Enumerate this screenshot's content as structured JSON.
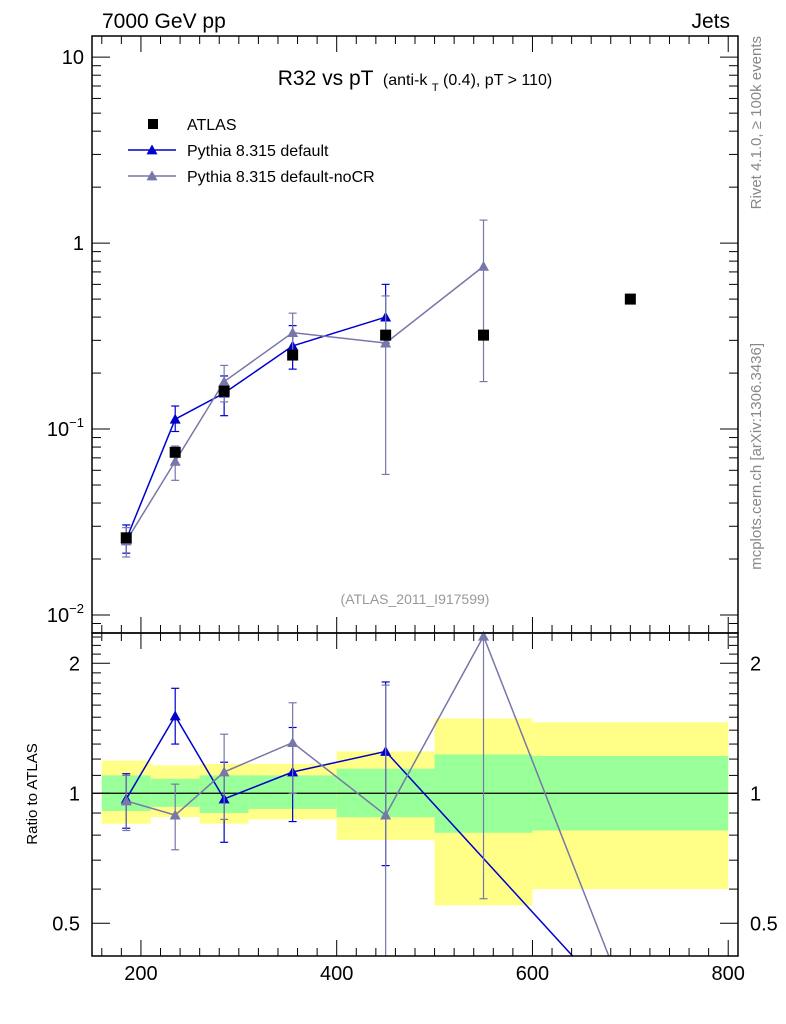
{
  "header": {
    "left": "7000 GeV pp",
    "right": "Jets",
    "title_main": "R32 vs pT",
    "title_paren_open": "(anti-k",
    "title_sub": "T",
    "title_rest": "(0.4), pT > 110)",
    "analysis_id": "(ATLAS_2011_I917599)",
    "side_rivet": "Rivet 4.1.0, ≥ 100k events",
    "side_mcplots": "mcplots.cern.ch [arXiv:1306.3436]",
    "ratio_ylabel": "Ratio to ATLAS"
  },
  "colors": {
    "data": "#000000",
    "pythia_default": "#0000cc",
    "pythia_nocr": "#7777aa",
    "band_outer": "#ffff88",
    "band_inner": "#99ff99"
  },
  "chart_data": {
    "type": "scatter",
    "xlim": [
      150,
      810
    ],
    "ylim_main": [
      0.008,
      13
    ],
    "ylim_ratio": [
      0.42,
      2.35
    ],
    "x_ticks": [
      "200",
      "400",
      "600",
      "800"
    ],
    "y_ticks_main": [
      {
        "value": 10,
        "label": "10",
        "exp": ""
      },
      {
        "value": 1,
        "label": "1",
        "exp": ""
      },
      {
        "value": 0.1,
        "label": "10",
        "exp": "−1"
      },
      {
        "value": 0.01,
        "label": "10",
        "exp": "−2"
      }
    ],
    "y_ticks_ratio": [
      "0.5",
      "1",
      "2"
    ],
    "legend": [
      "ATLAS",
      "Pythia 8.315 default",
      "Pythia 8.315 default-noCR"
    ],
    "atlas": {
      "name": "ATLAS",
      "points": [
        {
          "x": 185,
          "y": 0.026
        },
        {
          "x": 235,
          "y": 0.075
        },
        {
          "x": 285,
          "y": 0.16
        },
        {
          "x": 355,
          "y": 0.25
        },
        {
          "x": 450,
          "y": 0.32
        },
        {
          "x": 550,
          "y": 0.32
        },
        {
          "x": 700,
          "y": 0.5
        }
      ]
    },
    "series": [
      {
        "name": "Pythia 8.315 default",
        "points": [
          {
            "x": 185,
            "y": 0.0255,
            "lo": 0.0215,
            "hi": 0.0305
          },
          {
            "x": 235,
            "y": 0.113,
            "lo": 0.097,
            "hi": 0.133
          },
          {
            "x": 285,
            "y": 0.156,
            "lo": 0.118,
            "hi": 0.193
          },
          {
            "x": 355,
            "y": 0.28,
            "lo": 0.21,
            "hi": 0.36
          },
          {
            "x": 450,
            "y": 0.4,
            "lo": 0.29,
            "hi": 0.6
          }
        ]
      },
      {
        "name": "Pythia 8.315 default-noCR",
        "points": [
          {
            "x": 185,
            "y": 0.025,
            "lo": 0.0205,
            "hi": 0.0295
          },
          {
            "x": 235,
            "y": 0.067,
            "lo": 0.053,
            "hi": 0.081
          },
          {
            "x": 285,
            "y": 0.18,
            "lo": 0.14,
            "hi": 0.22
          },
          {
            "x": 355,
            "y": 0.33,
            "lo": 0.25,
            "hi": 0.42
          },
          {
            "x": 450,
            "y": 0.29,
            "lo": 0.057,
            "hi": 0.52
          },
          {
            "x": 550,
            "y": 0.75,
            "lo": 0.18,
            "hi": 1.33
          }
        ]
      }
    ],
    "ratio": {
      "bands": [
        {
          "x0": 160,
          "x1": 210,
          "in_lo": 0.91,
          "in_hi": 1.1,
          "out_lo": 0.85,
          "out_hi": 1.19
        },
        {
          "x0": 210,
          "x1": 260,
          "in_lo": 0.93,
          "in_hi": 1.08,
          "out_lo": 0.88,
          "out_hi": 1.16
        },
        {
          "x0": 260,
          "x1": 310,
          "in_lo": 0.9,
          "in_hi": 1.1,
          "out_lo": 0.85,
          "out_hi": 1.17
        },
        {
          "x0": 310,
          "x1": 400,
          "in_lo": 0.92,
          "in_hi": 1.1,
          "out_lo": 0.87,
          "out_hi": 1.17
        },
        {
          "x0": 400,
          "x1": 500,
          "in_lo": 0.88,
          "in_hi": 1.14,
          "out_lo": 0.78,
          "out_hi": 1.25
        },
        {
          "x0": 500,
          "x1": 600,
          "in_lo": 0.81,
          "in_hi": 1.23,
          "out_lo": 0.55,
          "out_hi": 1.49
        },
        {
          "x0": 600,
          "x1": 800,
          "in_lo": 0.82,
          "in_hi": 1.22,
          "out_lo": 0.6,
          "out_hi": 1.46
        }
      ],
      "series": [
        {
          "name": "Pythia 8.315 default",
          "points": [
            {
              "x": 185,
              "y": 0.97,
              "lo": 0.83,
              "hi": 1.11
            },
            {
              "x": 235,
              "y": 1.51,
              "lo": 1.3,
              "hi": 1.75
            },
            {
              "x": 285,
              "y": 0.97,
              "lo": 0.77,
              "hi": 1.18
            },
            {
              "x": 355,
              "y": 1.12,
              "lo": 0.86,
              "hi": 1.42
            },
            {
              "x": 450,
              "y": 1.25,
              "lo": 0.68,
              "hi": 1.81
            },
            {
              "x": 641,
              "y": 0.4
            }
          ]
        },
        {
          "name": "Pythia 8.315 default-noCR",
          "points": [
            {
              "x": 185,
              "y": 0.96,
              "lo": 0.82,
              "hi": 1.1
            },
            {
              "x": 235,
              "y": 0.89,
              "lo": 0.74,
              "hi": 1.05
            },
            {
              "x": 285,
              "y": 1.12,
              "lo": 0.87,
              "hi": 1.37
            },
            {
              "x": 355,
              "y": 1.31,
              "lo": 1.0,
              "hi": 1.62
            },
            {
              "x": 450,
              "y": 0.89,
              "lo": 0.38,
              "hi": 1.78
            },
            {
              "x": 550,
              "y": 2.31,
              "lo": 0.57,
              "hi": 2.4
            },
            {
              "x": 678,
              "y": 0.4
            }
          ]
        }
      ]
    }
  }
}
